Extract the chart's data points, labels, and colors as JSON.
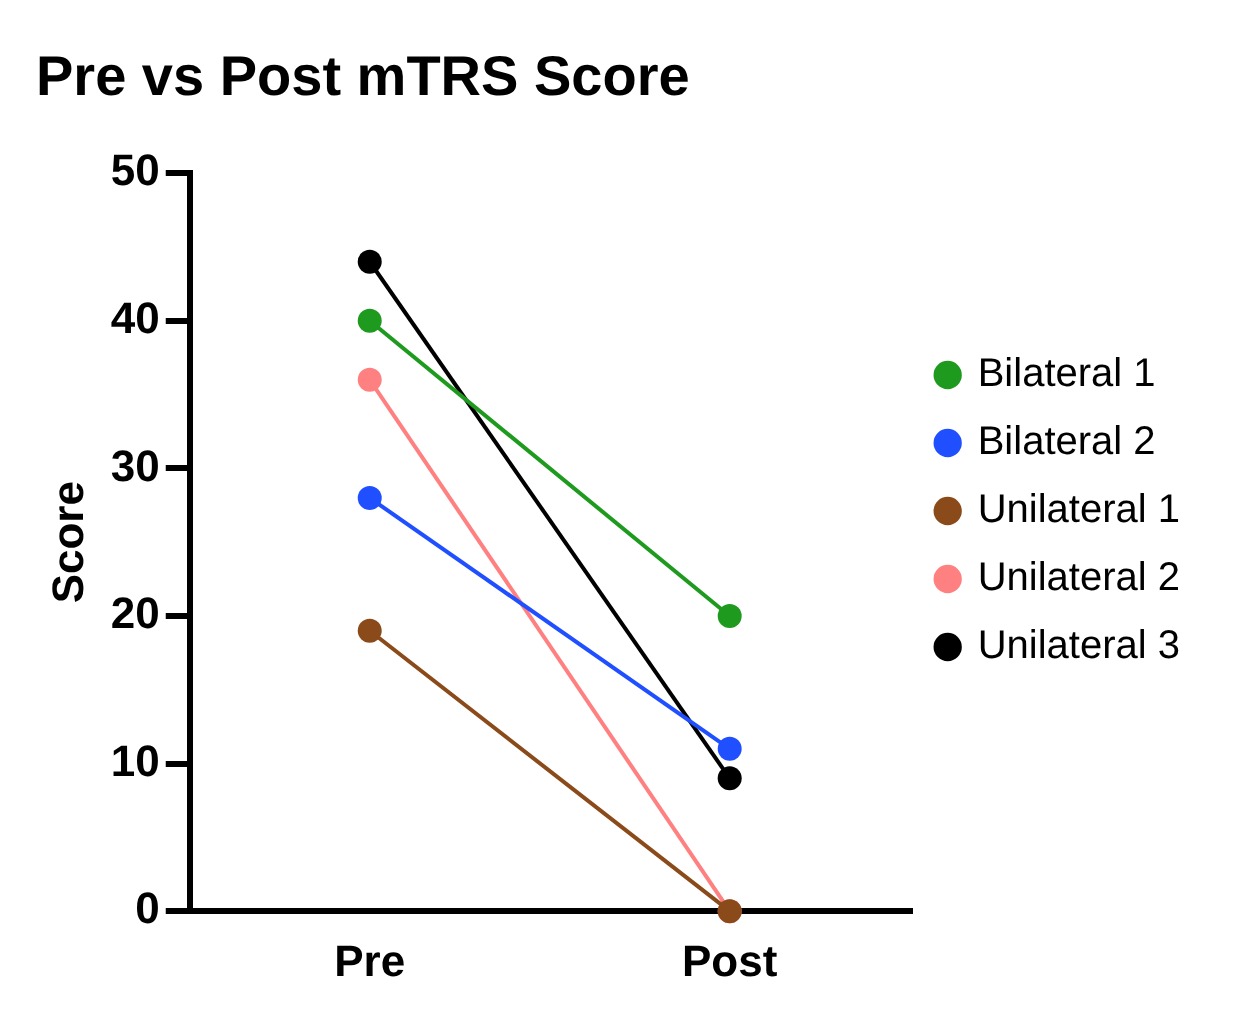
{
  "chart_data": {
    "type": "line",
    "title": "Pre vs Post mTRS Score",
    "ylabel": "Score",
    "categories": [
      "Pre",
      "Post"
    ],
    "ylim": [
      0,
      50
    ],
    "yticks": [
      0,
      10,
      20,
      30,
      40,
      50
    ],
    "grid": false,
    "legend": "right",
    "marker": "circle",
    "line_style": "solid",
    "series": [
      {
        "name": "Bilateral 1",
        "color": "#1e9a1e",
        "values": [
          40,
          20
        ]
      },
      {
        "name": "Bilateral 2",
        "color": "#1f4fff",
        "values": [
          28,
          11
        ]
      },
      {
        "name": "Unilateral 1",
        "color": "#8b4a1a",
        "values": [
          19,
          0
        ]
      },
      {
        "name": "Unilateral 2",
        "color": "#ff8080",
        "values": [
          36,
          0
        ]
      },
      {
        "name": "Unilateral 3",
        "color": "#000000",
        "values": [
          44,
          9
        ]
      }
    ]
  }
}
